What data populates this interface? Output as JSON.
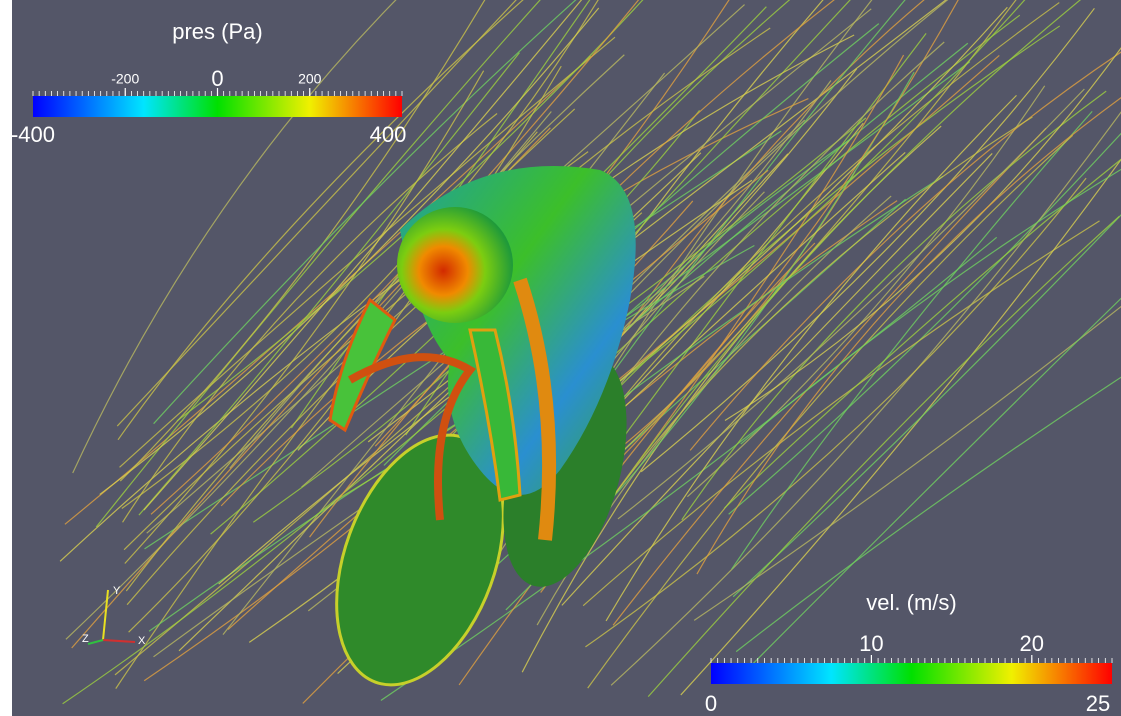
{
  "colorbars": [
    {
      "title": "pres (Pa)",
      "range": [
        -400,
        400
      ],
      "ticks": [
        -200,
        0,
        200
      ]
    },
    {
      "title": "vel. (m/s)",
      "range": [
        0,
        25
      ],
      "ticks": [
        10,
        20
      ]
    }
  ],
  "axes_triad": {
    "y": "Y",
    "z": "Z",
    "x": "X"
  }
}
